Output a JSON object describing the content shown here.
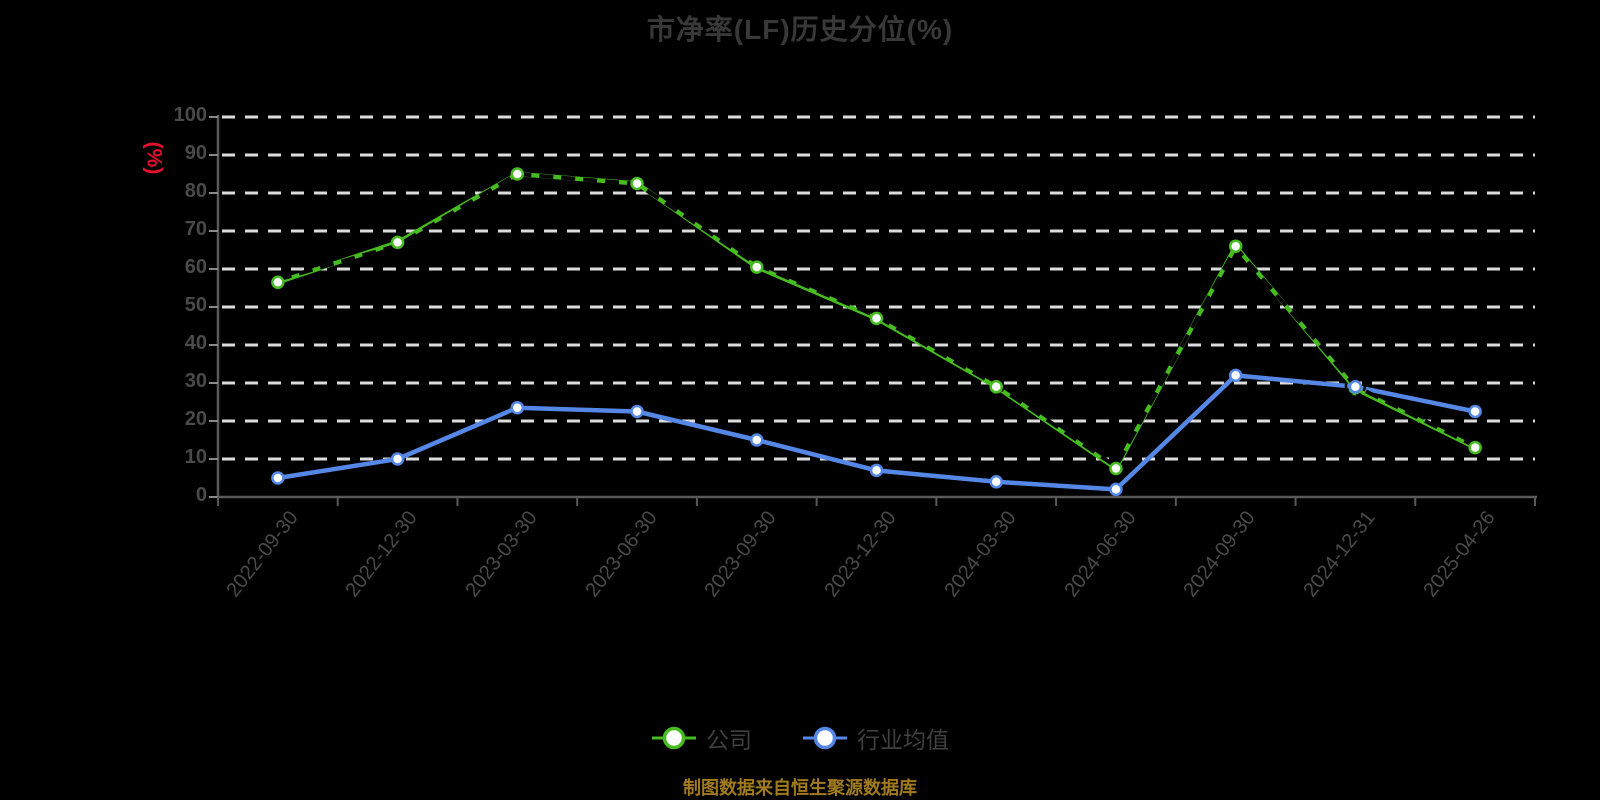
{
  "title": "市净率(LF)历史分位(%)",
  "y_axis_unit": "(%)",
  "footer_note": "制图数据来自恒生聚源数据库",
  "colors": {
    "background": "#000000",
    "title": "#383838",
    "axis_line": "#595959",
    "tick": "#8a8a8a",
    "axis_label": "#4a4a4a",
    "gridline": "#dcdcdc",
    "unit_label_red": "#e8112d",
    "legend_text": "#3f3f3f",
    "footer_gold": "#a07a1e",
    "marker_fill": "#ffffff",
    "series_company_green": "#46bc20",
    "series_industry_blue": "#5587e6",
    "dashed_overlay_black": "#050505"
  },
  "chart_data": {
    "type": "line",
    "title": "市净率(LF)历史分位(%)",
    "ylabel": "(%)",
    "ylim": [
      0,
      100
    ],
    "y_ticks": [
      0,
      10,
      20,
      30,
      40,
      50,
      60,
      70,
      80,
      90,
      100
    ],
    "grid": "horizontal white dashed on black",
    "legend_position": "bottom center",
    "categories": [
      "2022-09-30",
      "2022-12-30",
      "2023-03-30",
      "2023-06-30",
      "2023-09-30",
      "2023-12-30",
      "2024-03-30",
      "2024-06-30",
      "2024-09-30",
      "2024-12-31",
      "2025-04-26"
    ],
    "series": [
      {
        "name": "公司",
        "color": "#46bc20",
        "marker": "circle-white-fill",
        "values": [
          56.5,
          67,
          85,
          82.5,
          60.5,
          47,
          29,
          7.5,
          66,
          28.5,
          13
        ]
      },
      {
        "name": "行业均值",
        "color": "#5587e6",
        "marker": "circle-white-fill",
        "values": [
          5,
          10,
          23.5,
          22.5,
          15,
          7,
          4,
          2,
          32,
          29,
          22.5
        ]
      }
    ],
    "dashed_black_overlay": {
      "note": "black dashed trace visible only where it overlaps the colored lines",
      "values": [
        57.2,
        66.2,
        85,
        82.4,
        61.2,
        47.6,
        29.4,
        8,
        65.6,
        29.2,
        13.4
      ],
      "ring_index": 9
    }
  }
}
